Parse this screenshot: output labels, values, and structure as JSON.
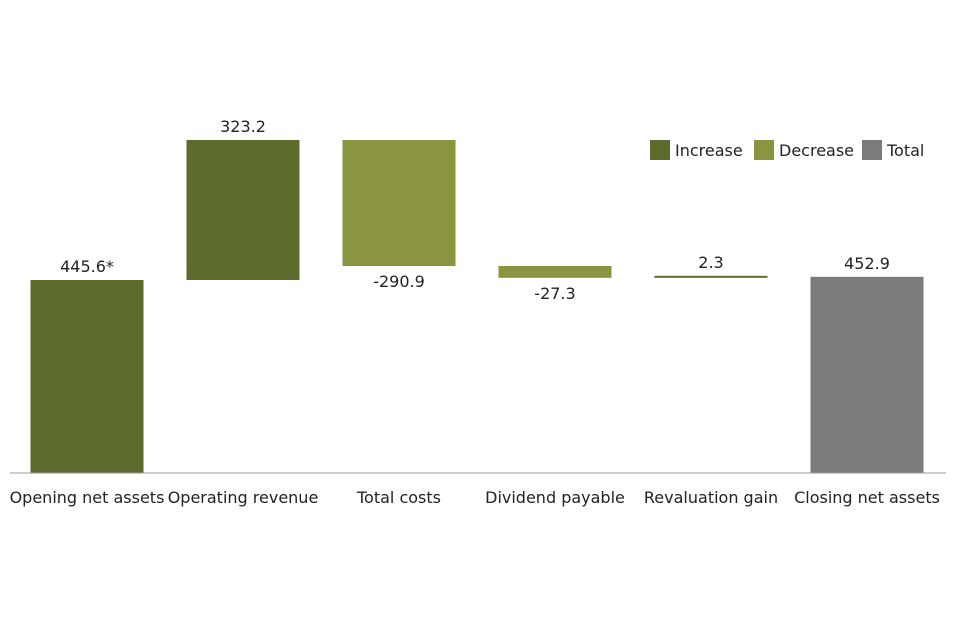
{
  "chart_data": {
    "type": "waterfall",
    "title": "",
    "xlabel": "",
    "ylabel": "",
    "ylim": [
      0,
      800
    ],
    "grid": false,
    "legend_position": "top-right",
    "colors": {
      "increase": "#5d6b2c",
      "decrease": "#8a9441",
      "total": "#7b7b7d",
      "axis": "#9a9a9a"
    },
    "legend": [
      {
        "key": "increase",
        "label": "Increase"
      },
      {
        "key": "decrease",
        "label": "Decrease"
      },
      {
        "key": "total",
        "label": "Total"
      }
    ],
    "bars": [
      {
        "category": "Opening net assets",
        "kind": "increase",
        "base": 0,
        "value": 445.6,
        "label": "445.6*",
        "label_pos": "above"
      },
      {
        "category": "Operating revenue",
        "kind": "increase",
        "base": 445.6,
        "value": 323.2,
        "label": "323.2",
        "label_pos": "above"
      },
      {
        "category": "Total costs",
        "kind": "decrease",
        "base": 768.8,
        "value": -290.9,
        "label": "-290.9",
        "label_pos": "below"
      },
      {
        "category": "Dividend payable",
        "kind": "decrease",
        "base": 477.9,
        "value": -27.3,
        "label": "-27.3",
        "label_pos": "below"
      },
      {
        "category": "Revaluation gain",
        "kind": "increase",
        "base": 450.6,
        "value": 2.3,
        "label": "2.3",
        "label_pos": "above"
      },
      {
        "category": "Closing net assets",
        "kind": "total",
        "base": 0,
        "value": 452.9,
        "label": "452.9",
        "label_pos": "above"
      }
    ]
  }
}
